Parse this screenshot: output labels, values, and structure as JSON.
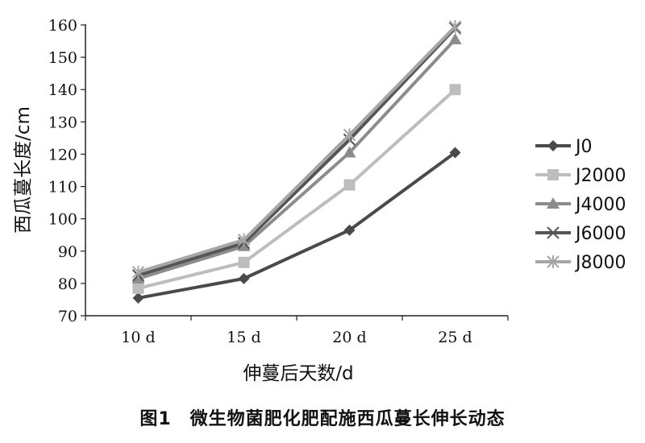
{
  "chart_data": {
    "type": "line",
    "title": "",
    "categories": [
      "10 d",
      "15 d",
      "20 d",
      "25 d"
    ],
    "xlabel": "伸蔓后天数/d",
    "ylabel": "西瓜蔓长度/cm",
    "ylim": [
      70,
      160
    ],
    "yticks": [
      70,
      80,
      90,
      100,
      110,
      120,
      130,
      140,
      150,
      160
    ],
    "grid": false,
    "legend_position": "right",
    "series": [
      {
        "name": "J0",
        "values": [
          75.5,
          81.5,
          96.5,
          120.5
        ],
        "color": "#4a4a4a",
        "marker": "diamond"
      },
      {
        "name": "J2000",
        "values": [
          78.5,
          86.5,
          110.5,
          140.0
        ],
        "color": "#bdbdbd",
        "marker": "square"
      },
      {
        "name": "J4000",
        "values": [
          81.5,
          91.5,
          120.5,
          155.5
        ],
        "color": "#8c8c8c",
        "marker": "triangle"
      },
      {
        "name": "J6000",
        "values": [
          82.5,
          92.5,
          124.5,
          159.0
        ],
        "color": "#555555",
        "marker": "x"
      },
      {
        "name": "J8000",
        "values": [
          83.5,
          93.5,
          126.0,
          159.5
        ],
        "color": "#a6a6a6",
        "marker": "star"
      }
    ]
  },
  "caption": "图1　微生物菌肥化肥配施西瓜蔓长伸长动态"
}
